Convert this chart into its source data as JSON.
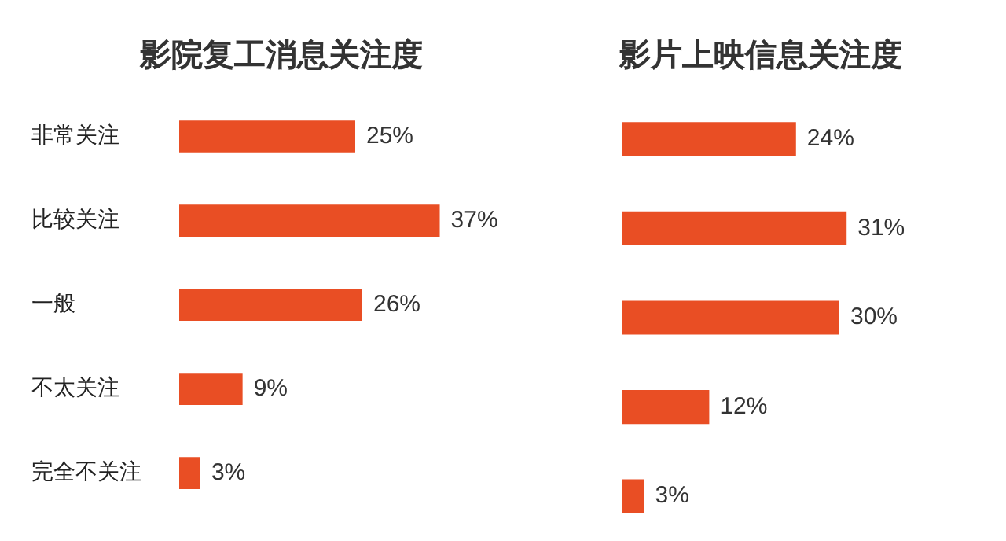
{
  "chart_data": [
    {
      "type": "bar",
      "orientation": "horizontal",
      "title": "影院复工消息关注度",
      "categories": [
        "非常关注",
        "比较关注",
        "一般",
        "不太关注",
        "完全不关注"
      ],
      "values": [
        25,
        37,
        26,
        9,
        3
      ],
      "color": "#e94e24",
      "value_labels": [
        "25%",
        "37%",
        "26%",
        "9%",
        "3%"
      ],
      "tick_labels": "y",
      "grid": false,
      "legend": false
    },
    {
      "type": "bar",
      "orientation": "horizontal",
      "title": "影片上映信息关注度",
      "categories": [
        null,
        null,
        null,
        null,
        null
      ],
      "values": [
        24,
        31,
        30,
        12,
        3
      ],
      "color": "#e94e24",
      "value_labels": [
        "24%",
        "31%",
        "30%",
        "12%",
        "3%"
      ],
      "tick_labels": false,
      "grid": false,
      "legend": false
    }
  ]
}
